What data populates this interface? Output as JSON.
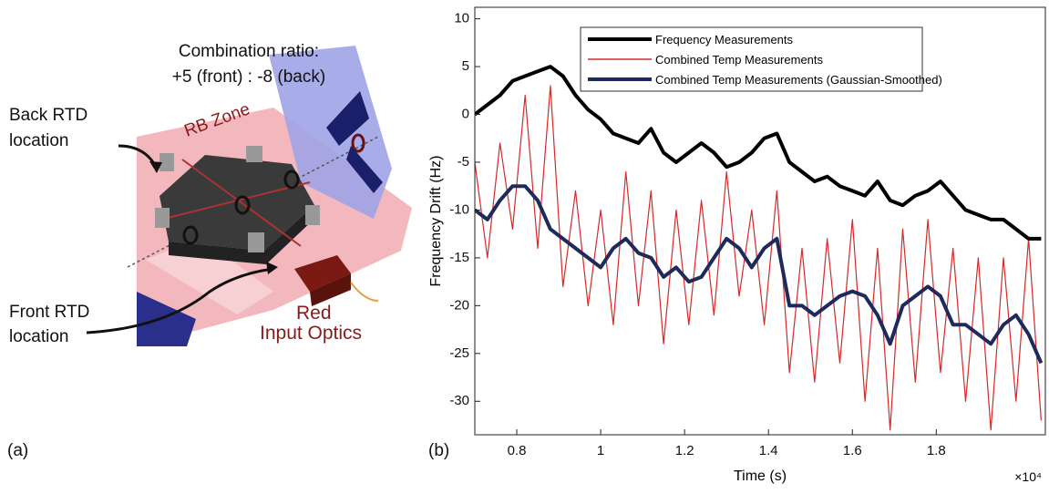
{
  "figure_a": {
    "panel_label": "(a)",
    "ratio_title": "Combination ratio:",
    "ratio_value": "+5 (front) : -8 (back)",
    "back_rtd": [
      "Back RTD",
      "location"
    ],
    "zone_label": "RB Zone",
    "front_rtd": [
      "Front RTD",
      "location"
    ],
    "optics_label": [
      "Red",
      "Input Optics"
    ]
  },
  "panel_b_label": "(b)",
  "chart_data": {
    "type": "line",
    "xlabel": "Time (s)",
    "ylabel": "Frequency Drift (Hz)",
    "x_exponent_label": "×10⁴",
    "x": [
      0.7,
      0.73,
      0.76,
      0.79,
      0.82,
      0.85,
      0.88,
      0.91,
      0.94,
      0.97,
      1.0,
      1.03,
      1.06,
      1.09,
      1.12,
      1.15,
      1.18,
      1.21,
      1.24,
      1.27,
      1.3,
      1.33,
      1.36,
      1.39,
      1.42,
      1.45,
      1.48,
      1.51,
      1.54,
      1.57,
      1.6,
      1.63,
      1.66,
      1.69,
      1.72,
      1.75,
      1.78,
      1.81,
      1.84,
      1.87,
      1.9,
      1.93,
      1.96,
      1.99,
      2.02,
      2.05
    ],
    "series": [
      {
        "name": "Frequency Measurements",
        "color": "#000000",
        "values": [
          0,
          1,
          2,
          3.5,
          4,
          4.5,
          5,
          4,
          2,
          0.5,
          -0.5,
          -2,
          -2.5,
          -3,
          -1.5,
          -4,
          -5,
          -4,
          -3,
          -4,
          -5.5,
          -5,
          -4,
          -2.5,
          -2,
          -5,
          -6,
          -7,
          -6.5,
          -7.5,
          -8,
          -8.5,
          -7,
          -9,
          -9.5,
          -8.5,
          -8,
          -7,
          -8.5,
          -10,
          -10.5,
          -11,
          -11,
          -12,
          -13,
          -13
        ]
      },
      {
        "name": "Combined Temp Measurements",
        "color": "#d42a2a",
        "values": [
          -5,
          -15,
          -3,
          -12,
          2,
          -14,
          3,
          -18,
          -8,
          -20,
          -10,
          -22,
          -6,
          -20,
          -8,
          -24,
          -10,
          -22,
          -9,
          -21,
          -6,
          -19,
          -10,
          -22,
          -8,
          -27,
          -14,
          -28,
          -13,
          -26,
          -11,
          -30,
          -14,
          -33,
          -12,
          -28,
          -11,
          -27,
          -14,
          -30,
          -15,
          -33,
          -15,
          -30,
          -13,
          -32
        ]
      },
      {
        "name": "Combined Temp Measurements (Gaussian-Smoothed)",
        "color": "#1f2a5c",
        "values": [
          -10,
          -11,
          -9,
          -7.5,
          -7.5,
          -9,
          -12,
          -13,
          -14,
          -15,
          -16,
          -14,
          -13,
          -14.5,
          -15,
          -17,
          -16,
          -17.5,
          -17,
          -15,
          -13,
          -14,
          -16,
          -14,
          -13,
          -20,
          -20,
          -21,
          -20,
          -19,
          -18.5,
          -19,
          -21,
          -24,
          -20,
          -19,
          -18,
          -19,
          -22,
          -22,
          -23,
          -24,
          -22,
          -21,
          -23,
          -26
        ]
      }
    ],
    "xlim": [
      0.7,
      2.06
    ],
    "xticks": [
      0.8,
      1,
      1.2,
      1.4,
      1.6,
      1.8
    ],
    "ylim": [
      -33.5,
      11.2
    ],
    "yticks": [
      -30,
      -25,
      -20,
      -15,
      -10,
      -5,
      0,
      5,
      10
    ],
    "legend": "upper right"
  }
}
